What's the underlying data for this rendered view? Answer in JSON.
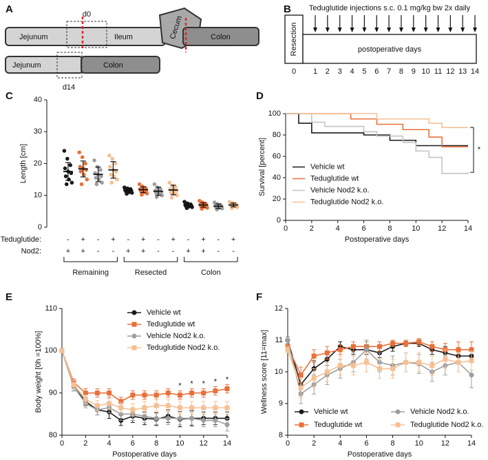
{
  "schematic_a": {
    "label": "A",
    "top": {
      "left": "Jejunum",
      "middle": "Ileum",
      "cecum": "Cecum",
      "right": "Colon",
      "marker": "d0"
    },
    "bottom": {
      "left": "Jejunum",
      "right": "Colon",
      "marker": "d14"
    }
  },
  "schematic_b": {
    "label": "B",
    "title": "Teduglutide injections s.c. 0.1 mg/kg bw 2x daily",
    "box": "Resection",
    "bar": "postoperative days",
    "days": [
      0,
      1,
      2,
      3,
      4,
      5,
      6,
      7,
      8,
      9,
      10,
      11,
      12,
      13,
      14
    ]
  },
  "chart_data": [
    {
      "type": "dot",
      "label": "C",
      "ylabel": "Length [cm]",
      "ylim": [
        0,
        40
      ],
      "yticks": [
        0,
        10,
        20,
        30,
        40
      ],
      "row_labels": [
        "Teduglutide:",
        "Nod2:"
      ],
      "sections": [
        "Remaining",
        "Resected",
        "Colon"
      ],
      "groups": [
        {
          "teduglutide": "-",
          "nod2": "+",
          "color": "#1a1a1a",
          "mean": 17.5,
          "sd": 2.8,
          "points": [
            24,
            21.5,
            19.5,
            18.5,
            17.5,
            17,
            16,
            15,
            14,
            13.5
          ]
        },
        {
          "teduglutide": "+",
          "nod2": "+",
          "color": "#e8703a",
          "mean": 18.3,
          "sd": 2.5,
          "points": [
            23.5,
            22,
            20,
            19,
            18.5,
            18,
            17.5,
            16.5,
            15,
            13.5
          ]
        },
        {
          "teduglutide": "-",
          "nod2": "-",
          "color": "#9e9e9e",
          "mean": 16.6,
          "sd": 2.3,
          "points": [
            21,
            19,
            18,
            17,
            16.5,
            16,
            15.5,
            15,
            14,
            13.5
          ]
        },
        {
          "teduglutide": "+",
          "nod2": "-",
          "color": "#f5c094",
          "mean": 18,
          "sd": 2.6,
          "points": [
            22.5,
            21.5,
            20,
            19,
            18,
            17.5,
            16.5,
            16,
            15,
            14
          ]
        },
        {
          "teduglutide": "-",
          "nod2": "+",
          "color": "#1a1a1a",
          "mean": 11.5,
          "sd": 0.6,
          "points": [
            12.5,
            12.2,
            12,
            11.8,
            11.6,
            11.5,
            11.3,
            11,
            10.8,
            10.5
          ]
        },
        {
          "teduglutide": "+",
          "nod2": "+",
          "color": "#e8703a",
          "mean": 11.8,
          "sd": 0.9,
          "points": [
            13.5,
            12.8,
            12.3,
            12,
            11.8,
            11.6,
            11.3,
            11,
            10.6,
            10.2
          ]
        },
        {
          "teduglutide": "-",
          "nod2": "-",
          "color": "#9e9e9e",
          "mean": 11.3,
          "sd": 1.3,
          "points": [
            13.5,
            12.5,
            12,
            11.5,
            11.2,
            11,
            10.8,
            10.5,
            10,
            9.5
          ]
        },
        {
          "teduglutide": "+",
          "nod2": "-",
          "color": "#f5c094",
          "mean": 11.7,
          "sd": 1.5,
          "points": [
            14,
            13,
            12.5,
            12,
            11.6,
            11.3,
            11,
            10.5,
            10,
            9.3
          ]
        },
        {
          "teduglutide": "-",
          "nod2": "+",
          "color": "#1a1a1a",
          "mean": 6.9,
          "sd": 0.5,
          "points": [
            8,
            7.5,
            7.2,
            7,
            6.9,
            6.8,
            6.6,
            6.5,
            6.3,
            6
          ]
        },
        {
          "teduglutide": "+",
          "nod2": "+",
          "color": "#e8703a",
          "mean": 7,
          "sd": 0.7,
          "points": [
            8.3,
            7.8,
            7.4,
            7.1,
            7,
            6.9,
            6.6,
            6.4,
            6.1,
            5.8
          ]
        },
        {
          "teduglutide": "-",
          "nod2": "-",
          "color": "#9e9e9e",
          "mean": 6.6,
          "sd": 0.7,
          "points": [
            7.8,
            7.3,
            7,
            6.8,
            6.6,
            6.5,
            6.3,
            6.1,
            5.9,
            5.6
          ]
        },
        {
          "teduglutide": "+",
          "nod2": "-",
          "color": "#f5c094",
          "mean": 7,
          "sd": 0.6,
          "points": [
            8,
            7.6,
            7.3,
            7.1,
            7,
            6.9,
            6.8,
            6.6,
            6.3,
            6
          ]
        }
      ]
    },
    {
      "type": "step",
      "label": "D",
      "xlabel": "Postoperative days",
      "ylabel": "Survival [percent]",
      "xlim": [
        0,
        14
      ],
      "ylim": [
        0,
        100
      ],
      "xticks": [
        0,
        2,
        4,
        6,
        8,
        10,
        12,
        14
      ],
      "yticks": [
        0,
        20,
        40,
        60,
        80,
        100
      ],
      "legend": "center left",
      "annotations": [
        {
          "text": "*"
        }
      ],
      "series": [
        {
          "name": "Vehicle wt",
          "color": "#1a1a1a",
          "x": [
            0,
            1,
            2,
            6,
            8,
            10,
            14
          ],
          "values": [
            100,
            91,
            82,
            80,
            75,
            70,
            70
          ]
        },
        {
          "name": "Teduglutide wt",
          "color": "#e8703a",
          "x": [
            0,
            5,
            7,
            9,
            11,
            12,
            14
          ],
          "values": [
            100,
            95,
            90,
            85,
            78,
            69,
            69
          ]
        },
        {
          "name": "Vehicle Nod2 k.o.",
          "color": "#c4c4c4",
          "x": [
            0,
            2,
            3,
            6,
            7,
            9,
            10,
            11,
            12,
            14
          ],
          "values": [
            100,
            92,
            88,
            83,
            79,
            73,
            65,
            59,
            44,
            45
          ]
        },
        {
          "name": "Teduglutide Nod2 k.o.",
          "color": "#f5c094",
          "x": [
            0,
            7,
            11,
            12,
            14
          ],
          "values": [
            100,
            95,
            91,
            87,
            87
          ]
        }
      ]
    },
    {
      "type": "line",
      "label": "E",
      "xlabel": "Postoperative days",
      "ylabel": "Body weight [0h =100%]",
      "xlim": [
        0,
        14
      ],
      "ylim": [
        80,
        110
      ],
      "xticks": [
        0,
        2,
        4,
        6,
        8,
        10,
        12,
        14
      ],
      "yticks": [
        80,
        90,
        100,
        110
      ],
      "legend": "upper right",
      "annotations": [
        {
          "text": "*",
          "x": 10
        },
        {
          "text": "*",
          "x": 11
        },
        {
          "text": "*",
          "x": 12
        },
        {
          "text": "*",
          "x": 13
        },
        {
          "text": "*",
          "x": 14
        }
      ],
      "x": [
        0,
        1,
        2,
        3,
        4,
        5,
        6,
        7,
        8,
        9,
        10,
        11,
        12,
        13,
        14
      ],
      "series": [
        {
          "name": "Vehicle wt",
          "color": "#1a1a1a",
          "marker": "circle",
          "values": [
            100,
            91.5,
            88,
            86,
            85.5,
            83.5,
            84.5,
            84,
            83.8,
            84.5,
            83.8,
            84,
            84,
            84,
            84
          ],
          "errors": [
            0.5,
            1,
            1,
            1.2,
            1.5,
            1.2,
            1.5,
            1.5,
            1.5,
            1.5,
            1.8,
            1.8,
            1.5,
            1.5,
            1.5
          ]
        },
        {
          "name": "Teduglutide wt",
          "color": "#e8703a",
          "marker": "square",
          "values": [
            100,
            92.5,
            90,
            90,
            90,
            88,
            89.5,
            89.5,
            89.5,
            90,
            89.5,
            90,
            90,
            90.5,
            91
          ],
          "errors": [
            0.5,
            0.8,
            1,
            1,
            1,
            1,
            1,
            1,
            1,
            1,
            1,
            1,
            1,
            1,
            1
          ]
        },
        {
          "name": "Vehicle Nod2 k.o.",
          "color": "#9e9e9e",
          "marker": "circle",
          "values": [
            100,
            91.5,
            87.5,
            86,
            86.5,
            85,
            85,
            84.5,
            84,
            84,
            84,
            84,
            83.5,
            83.5,
            82.5
          ],
          "errors": [
            0.5,
            1,
            1,
            1.2,
            1.2,
            1.5,
            1.5,
            1.5,
            1.5,
            1.5,
            1.5,
            1.5,
            1.5,
            1.5,
            1.5
          ]
        },
        {
          "name": "Teduglutide Nod2 k.o.",
          "color": "#f5c094",
          "marker": "square",
          "values": [
            100,
            92,
            88.5,
            87,
            87.5,
            86.5,
            86,
            86.5,
            87,
            87,
            86.5,
            86.5,
            86.5,
            86.5,
            86.5
          ],
          "errors": [
            0.5,
            1,
            1,
            1.2,
            1.2,
            1.2,
            1.5,
            1.5,
            1.5,
            1.5,
            1.5,
            1.5,
            1.5,
            1.5,
            1.5
          ]
        }
      ]
    },
    {
      "type": "line",
      "label": "F",
      "xlabel": "Postoperative days",
      "ylabel": "Wellness score [11=max]",
      "xlim": [
        0,
        14
      ],
      "ylim": [
        8,
        12
      ],
      "xticks": [
        0,
        2,
        4,
        6,
        8,
        10,
        12,
        14
      ],
      "yticks": [
        8,
        9,
        10,
        11,
        12
      ],
      "legend": "lower center",
      "x": [
        0,
        1,
        2,
        3,
        4,
        5,
        6,
        7,
        8,
        9,
        10,
        11,
        12,
        13,
        14
      ],
      "series": [
        {
          "name": "Vehicle wt",
          "color": "#1a1a1a",
          "marker": "circle",
          "values": [
            11,
            9.6,
            10.1,
            10.4,
            10.8,
            10.7,
            10.7,
            10.6,
            10.8,
            10.9,
            10.9,
            10.7,
            10.6,
            10.5,
            10.5
          ],
          "errors": [
            0.1,
            0.25,
            0.25,
            0.2,
            0.15,
            0.15,
            0.15,
            0.15,
            0.15,
            0.1,
            0.1,
            0.15,
            0.2,
            0.2,
            0.2
          ]
        },
        {
          "name": "Teduglutide wt",
          "color": "#e8703a",
          "marker": "square",
          "values": [
            10.8,
            9.9,
            10.5,
            10.6,
            10.7,
            10.8,
            10.8,
            10.8,
            10.9,
            10.9,
            10.95,
            10.8,
            10.7,
            10.7,
            10.7
          ],
          "errors": [
            0.1,
            0.25,
            0.2,
            0.2,
            0.15,
            0.15,
            0.15,
            0.15,
            0.1,
            0.1,
            0.1,
            0.15,
            0.2,
            0.25,
            0.25
          ]
        },
        {
          "name": "Vehicle Nod2 k.o.",
          "color": "#9e9e9e",
          "marker": "circle",
          "values": [
            11,
            9.3,
            9.6,
            9.9,
            10.1,
            10.3,
            10.7,
            10.3,
            10.2,
            10.3,
            10.25,
            10,
            10.2,
            10.3,
            9.9
          ],
          "errors": [
            0.1,
            0.3,
            0.3,
            0.3,
            0.3,
            0.3,
            0.3,
            0.3,
            0.3,
            0.3,
            0.3,
            0.3,
            0.3,
            0.3,
            0.4
          ]
        },
        {
          "name": "Teduglutide Nod2 k.o.",
          "color": "#f5c094",
          "marker": "square",
          "values": [
            10.7,
            9.5,
            9.8,
            10,
            10.2,
            10.2,
            10.3,
            10.1,
            10.1,
            10.3,
            10.3,
            10.2,
            10.4,
            10.3,
            10.35
          ],
          "errors": [
            0.1,
            0.3,
            0.3,
            0.3,
            0.3,
            0.3,
            0.3,
            0.3,
            0.3,
            0.3,
            0.3,
            0.3,
            0.3,
            0.3,
            0.3
          ]
        }
      ]
    }
  ]
}
